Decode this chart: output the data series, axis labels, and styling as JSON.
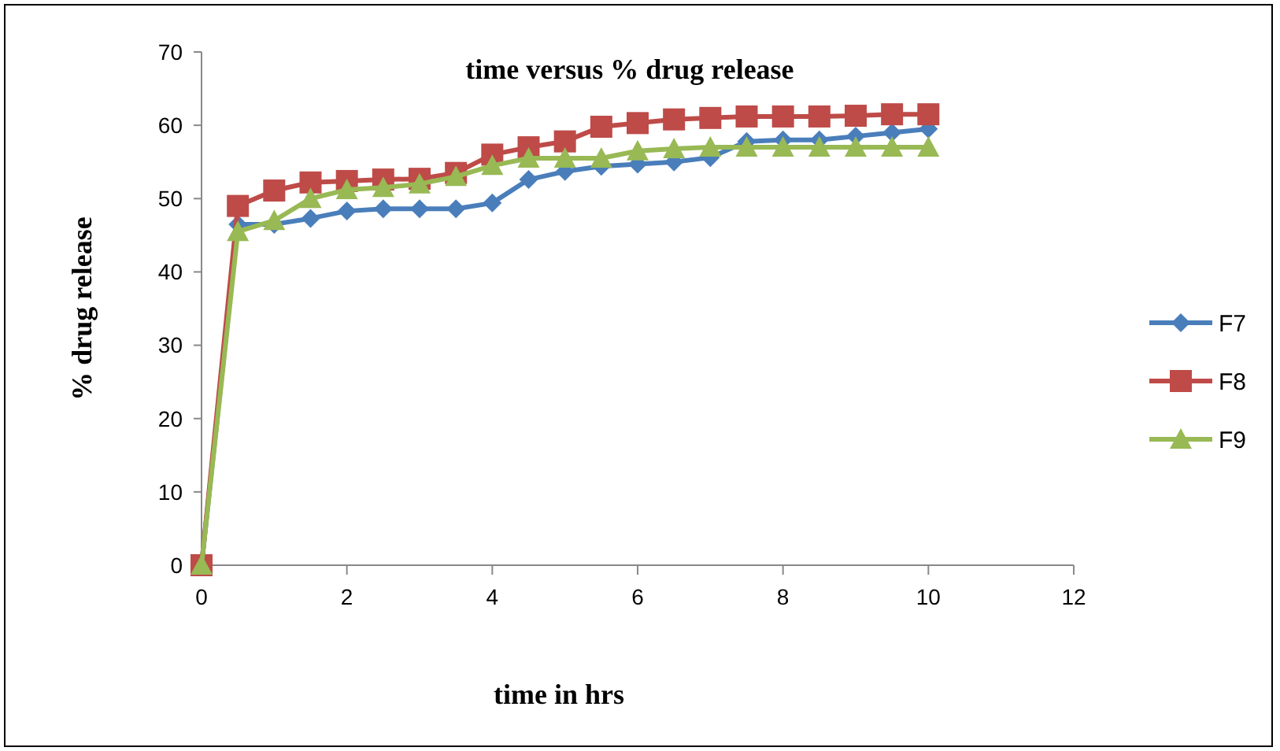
{
  "chart_data": {
    "type": "line",
    "title": "time versus % drug release",
    "xlabel": "time in hrs",
    "ylabel": "% drug release",
    "x": [
      0,
      0.5,
      1,
      1.5,
      2,
      2.5,
      3,
      3.5,
      4,
      4.5,
      5,
      5.5,
      6,
      6.5,
      7,
      7.5,
      8,
      8.5,
      9,
      9.5,
      10
    ],
    "series": [
      {
        "name": "F7",
        "color": "#4a7ebb",
        "marker": "diamond",
        "values": [
          0,
          46.5,
          46.5,
          47.3,
          48.3,
          48.6,
          48.6,
          48.6,
          49.4,
          52.6,
          53.7,
          54.4,
          54.7,
          55,
          55.6,
          57.8,
          58,
          58,
          58.5,
          59,
          59.5
        ]
      },
      {
        "name": "F8",
        "color": "#be4b48",
        "marker": "square",
        "values": [
          0,
          49,
          51.1,
          52.2,
          52.4,
          52.6,
          52.7,
          53.5,
          56,
          57,
          57.8,
          59.8,
          60.3,
          60.8,
          61,
          61.2,
          61.2,
          61.2,
          61.3,
          61.5,
          61.5
        ]
      },
      {
        "name": "F9",
        "color": "#98b954",
        "marker": "triangle",
        "values": [
          0,
          45.5,
          47,
          50,
          51.2,
          51.5,
          52,
          53,
          54.5,
          55.5,
          55.5,
          55.5,
          56.5,
          56.8,
          57,
          57,
          57,
          57,
          57,
          57,
          57
        ]
      }
    ],
    "xlim": [
      0,
      12
    ],
    "xticks": [
      0,
      2,
      4,
      6,
      8,
      10,
      12
    ],
    "ylim": [
      0,
      70
    ],
    "yticks": [
      0,
      10,
      20,
      30,
      40,
      50,
      60,
      70
    ],
    "grid": false,
    "legend": "right",
    "line_style": "solid"
  }
}
